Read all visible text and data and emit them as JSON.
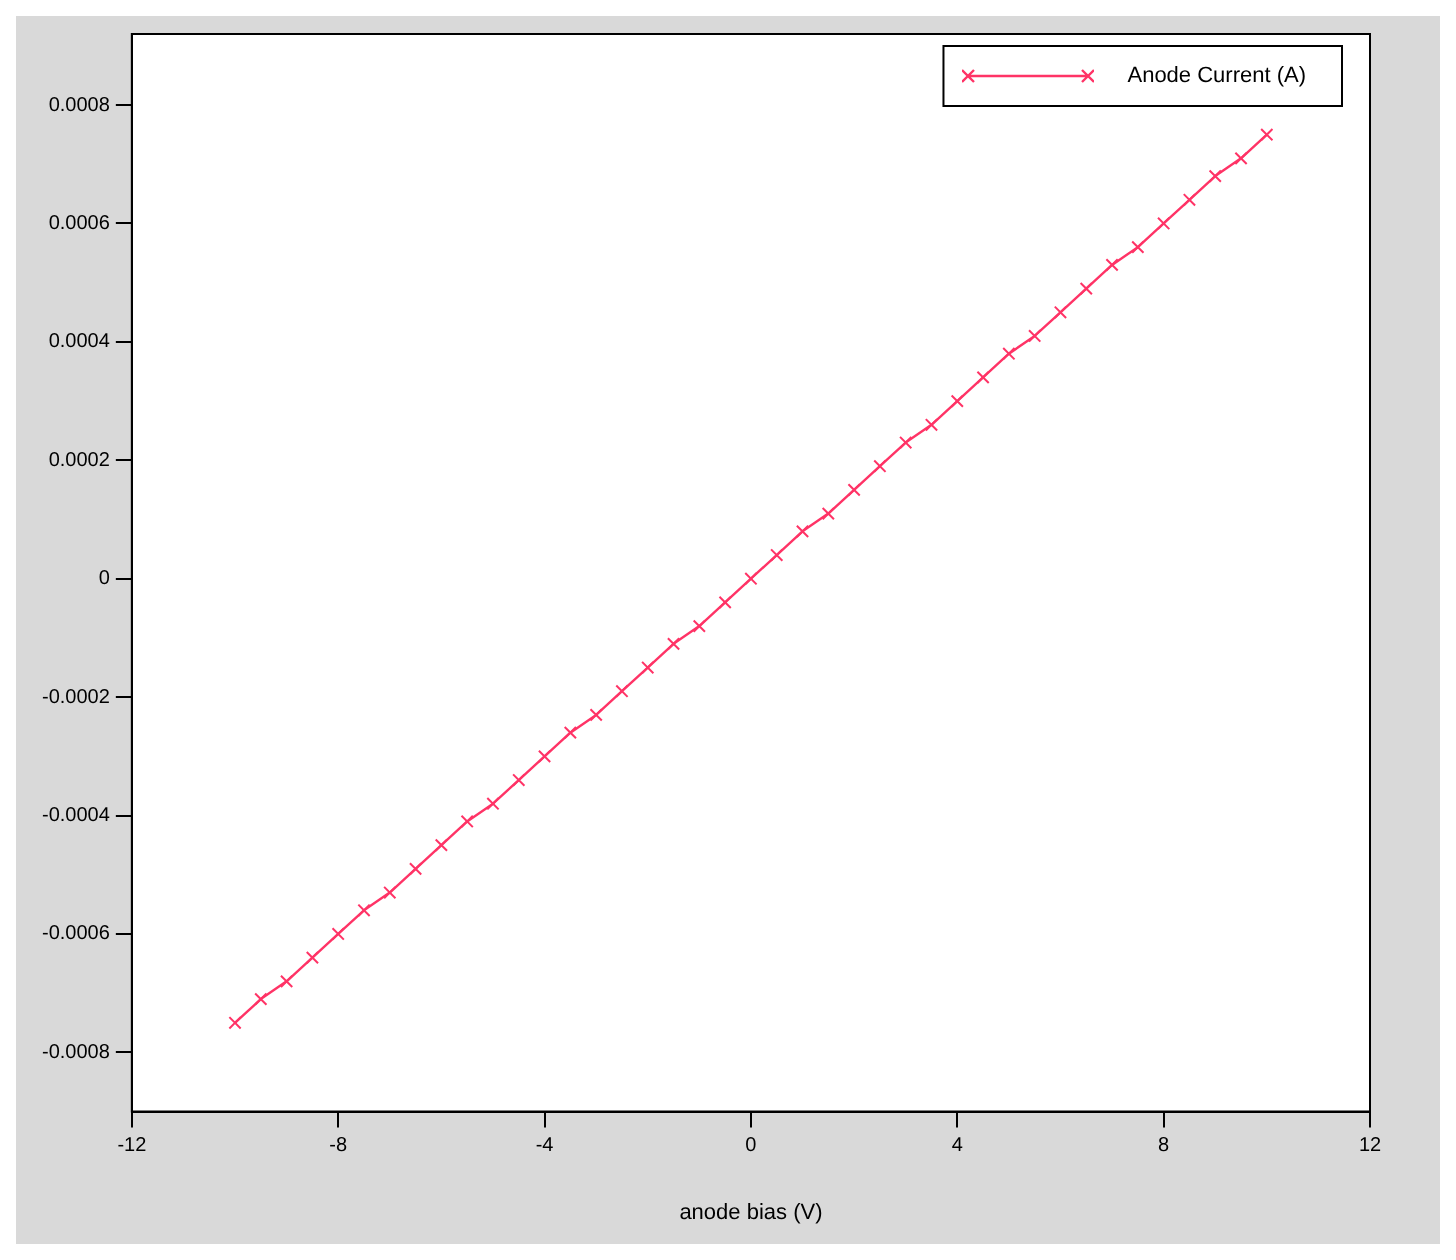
{
  "chart_data": {
    "type": "line",
    "xlabel": "anode bias (V)",
    "x": [
      -10,
      -9.5,
      -9,
      -8.5,
      -8,
      -7.5,
      -7,
      -6.5,
      -6,
      -5.5,
      -5,
      -4.5,
      -4,
      -3.5,
      -3,
      -2.5,
      -2,
      -1.5,
      -1,
      -0.5,
      0,
      0.5,
      1,
      1.5,
      2,
      2.5,
      3,
      3.5,
      4,
      4.5,
      5,
      5.5,
      6,
      6.5,
      7,
      7.5,
      8,
      8.5,
      9,
      9.5,
      10
    ],
    "series": [
      {
        "name": "Anode Current (A)",
        "color": "#ff3366",
        "values": [
          -0.00075,
          -0.00071,
          -0.00068,
          -0.00064,
          -0.0006,
          -0.00056,
          -0.00053,
          -0.00049,
          -0.00045,
          -0.00041,
          -0.00038,
          -0.00034,
          -0.0003,
          -0.00026,
          -0.00023,
          -0.00019,
          -0.00015,
          -0.00011,
          -8e-05,
          -4e-05,
          0,
          4e-05,
          8e-05,
          0.00011,
          0.00015,
          0.00019,
          0.00023,
          0.00026,
          0.0003,
          0.00034,
          0.00038,
          0.00041,
          0.00045,
          0.00049,
          0.00053,
          0.00056,
          0.0006,
          0.00064,
          0.00068,
          0.00071,
          0.00075
        ]
      }
    ],
    "xlim": [
      -12,
      12
    ],
    "xticks": [
      -12,
      -8,
      -4,
      0,
      4,
      8,
      12
    ],
    "ylim": [
      -0.0009,
      0.00092
    ],
    "yticks": [
      -0.0008,
      -0.0006,
      -0.0004,
      -0.0002,
      0,
      0.0002,
      0.0004,
      0.0006,
      0.0008
    ],
    "grid": false,
    "legend": "top right",
    "marker": "cross",
    "line_style": "solid"
  }
}
